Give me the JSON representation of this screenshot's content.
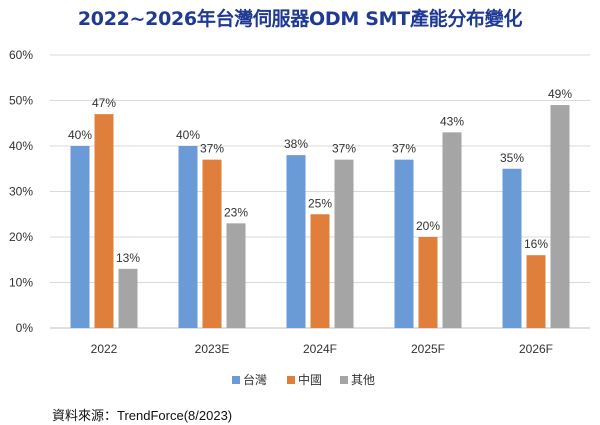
{
  "chart_data": {
    "type": "bar",
    "title": "2022~2026年台灣伺服器ODM SMT產能分布變化",
    "categories": [
      "2022",
      "2023E",
      "2024F",
      "2025F",
      "2026F"
    ],
    "series": [
      {
        "name": "台灣",
        "color": "#6b9bd6",
        "values": [
          40,
          40,
          38,
          37,
          35
        ]
      },
      {
        "name": "中國",
        "color": "#e07f3c",
        "values": [
          47,
          37,
          25,
          20,
          16
        ]
      },
      {
        "name": "其他",
        "color": "#a5a5a5",
        "values": [
          13,
          23,
          37,
          43,
          49
        ]
      }
    ],
    "value_unit": "%",
    "ylim": [
      0,
      60
    ],
    "yticks": [
      "0%",
      "10%",
      "20%",
      "30%",
      "40%",
      "50%",
      "60%"
    ],
    "grid": true,
    "legend_position": "bottom"
  },
  "source_note": "資料來源：TrendForce(8/2023)"
}
